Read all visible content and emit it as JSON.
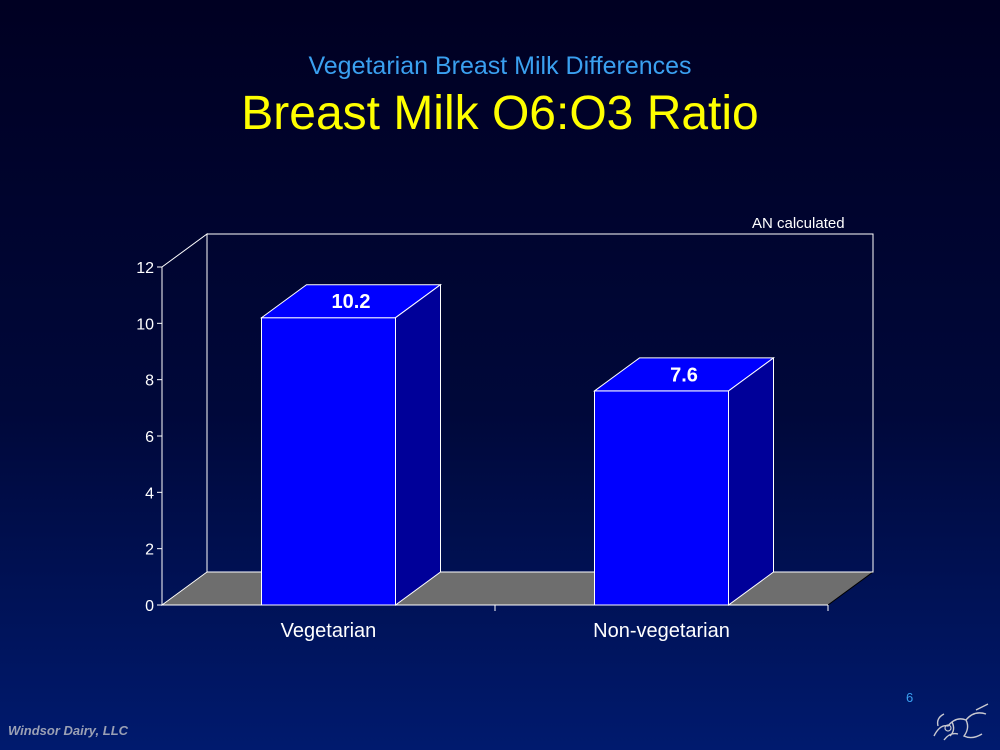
{
  "slide": {
    "subtitle": "Vegetarian Breast Milk Differences",
    "title": "Breast Milk O6:O3 Ratio",
    "note": "AN calculated",
    "footer": "Windsor Dairy, LLC",
    "page_number": "6"
  },
  "chart_data": {
    "type": "bar",
    "categories": [
      "Vegetarian",
      "Non-vegetarian"
    ],
    "values": [
      10.2,
      7.6
    ],
    "data_labels": [
      "10.2",
      "7.6"
    ],
    "ylim": [
      0,
      12
    ],
    "yticks": [
      0,
      2,
      4,
      6,
      8,
      10,
      12
    ],
    "grid": false,
    "legend": "none",
    "colors": {
      "bar": "#0000ff",
      "bar_side": "#000099",
      "floor": "#6e6e6e",
      "axis": "#ffffff"
    }
  }
}
